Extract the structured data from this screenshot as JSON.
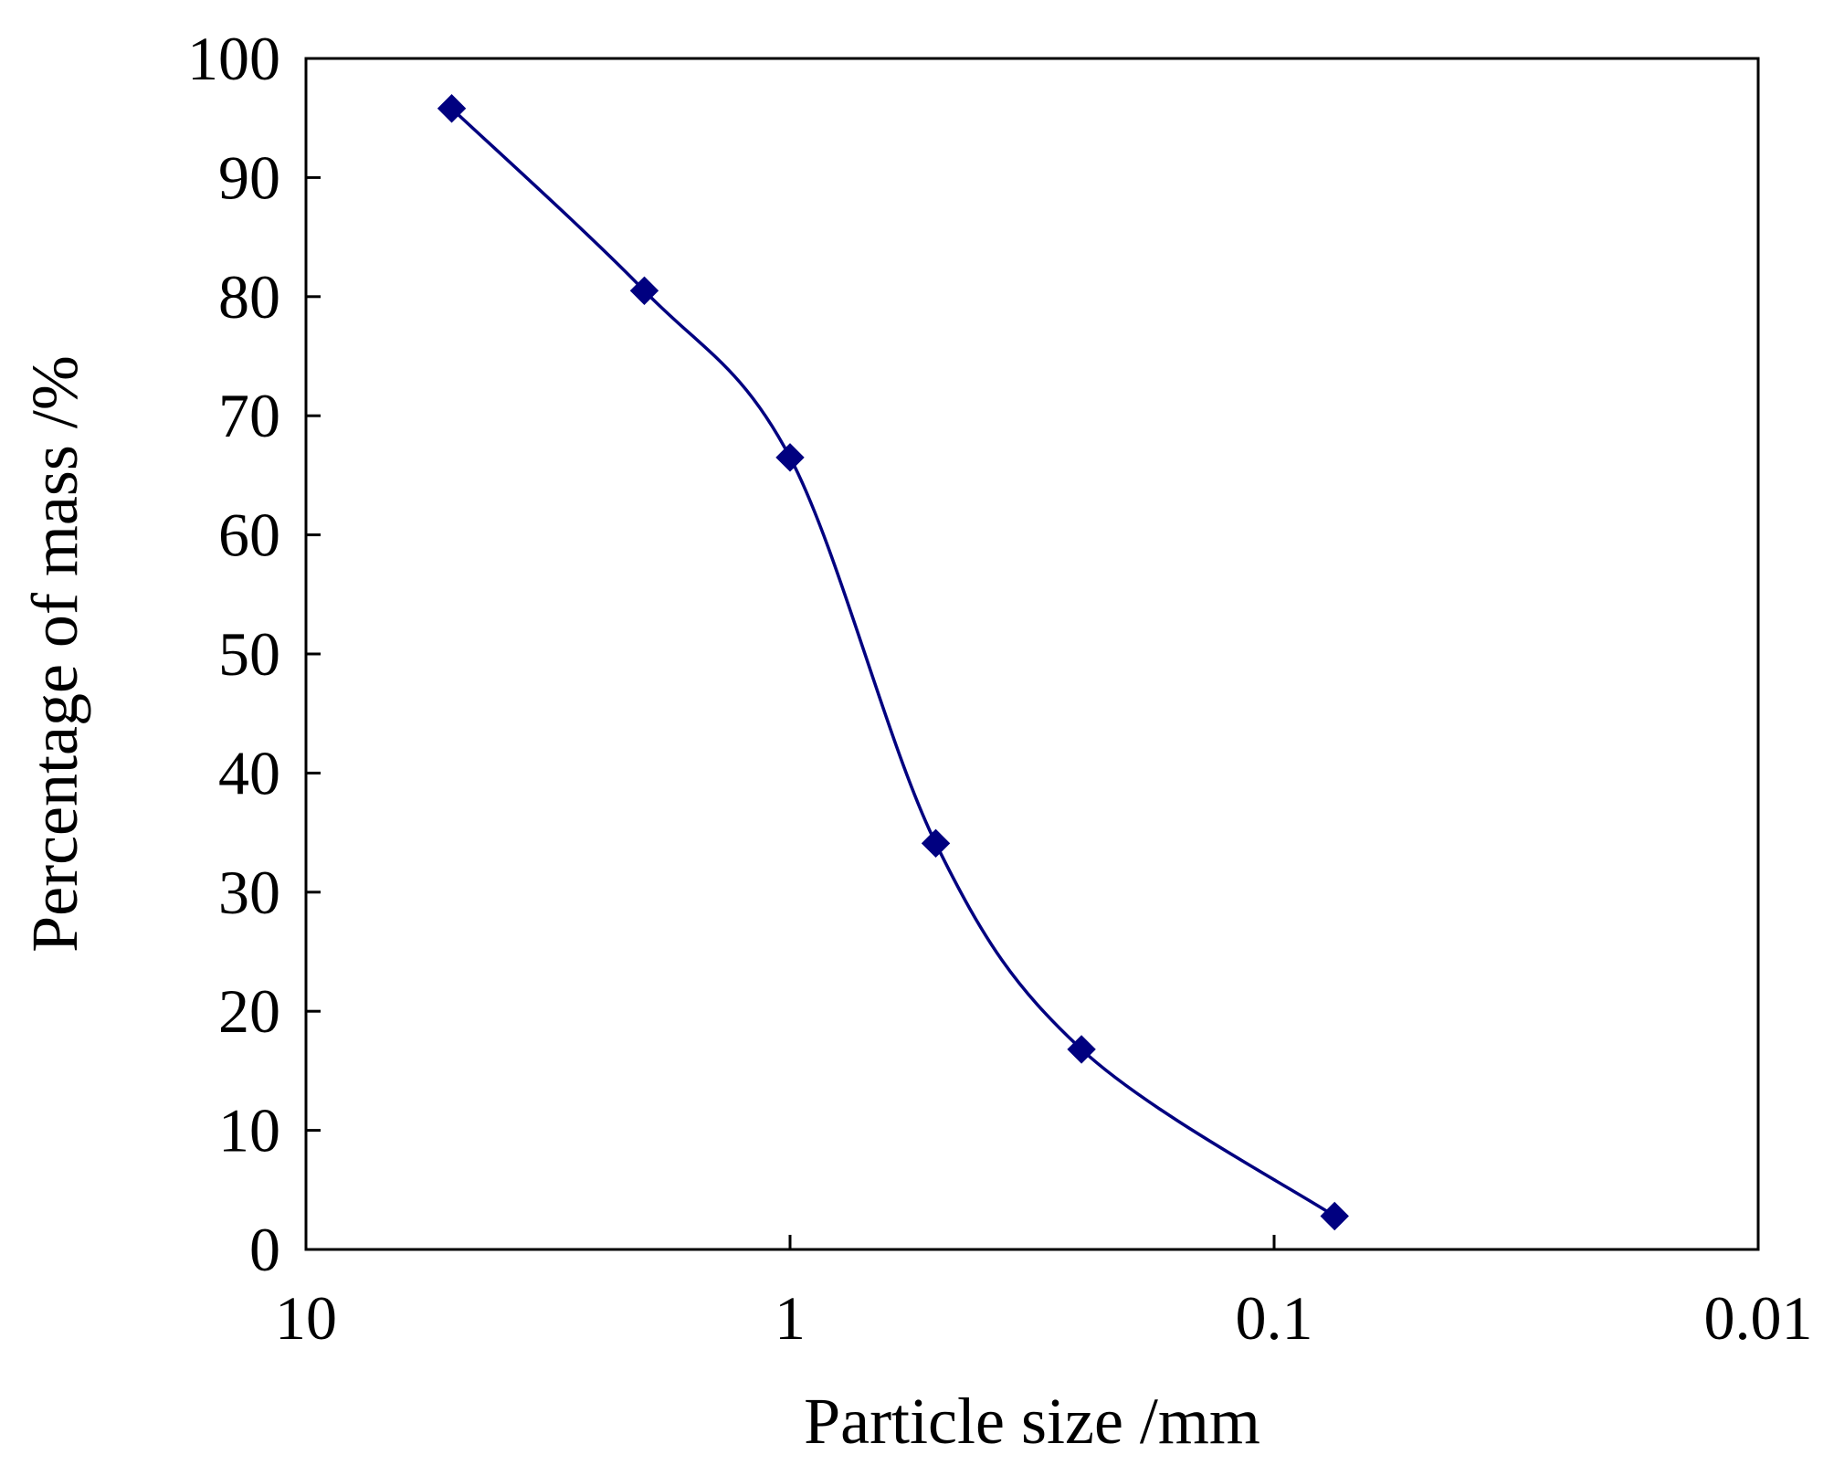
{
  "chart_data": {
    "type": "line",
    "title": "",
    "xlabel": "Particle size /mm",
    "ylabel": "Percentage of mass /%",
    "x_scale": "log",
    "x_reversed": true,
    "xlim": [
      10,
      0.01
    ],
    "ylim": [
      0,
      100
    ],
    "x_ticks": [
      10,
      1,
      0.1,
      0.01
    ],
    "x_tick_labels": [
      "10",
      "1",
      "0.1",
      "0.01"
    ],
    "y_ticks": [
      0,
      10,
      20,
      30,
      40,
      50,
      60,
      70,
      80,
      90,
      100
    ],
    "y_tick_labels": [
      "0",
      "10",
      "20",
      "30",
      "40",
      "50",
      "60",
      "70",
      "80",
      "90",
      "100"
    ],
    "grid": false,
    "legend": "none",
    "series": [
      {
        "x": [
          5,
          2,
          1,
          0.5,
          0.25,
          0.075
        ],
        "y": [
          95.8,
          80.5,
          66.5,
          34.1,
          16.8,
          2.8
        ],
        "color": "#000080",
        "marker": "diamond",
        "smooth": true
      }
    ]
  }
}
